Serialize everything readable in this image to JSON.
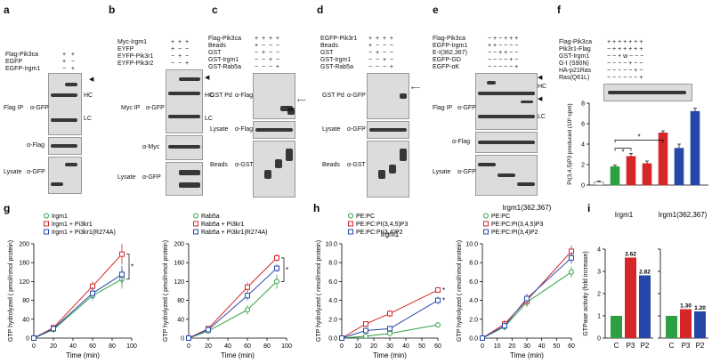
{
  "panels": {
    "a": {
      "letter": "a",
      "rows": [
        "Flag-Pik3ca",
        "EGFP",
        "EGFP-Irgm1"
      ],
      "labels": {
        "hc": "HC",
        "lc": "LC",
        "ip": "Flag IP",
        "agfp": "α-GFP",
        "aflag": "α-Flag",
        "lysate": "Lysate",
        "lgfp": "α-GFP"
      }
    },
    "b": {
      "letter": "b",
      "rows": [
        "Myc-Irgm1",
        "EYFP",
        "EYFP-Pik3r1",
        "EYFP-Pik3r2"
      ],
      "labels": {
        "hc": "HC",
        "lc": "LC",
        "ip": "Myc IP",
        "agfp": "α-GFP",
        "amyc": "α-Myc",
        "lysate": "Lysate",
        "lgfp": "α-GFP"
      }
    },
    "c": {
      "letter": "c",
      "rows": [
        "Flag-Pik3ca",
        "Beads",
        "GST",
        "GST-Irgm1",
        "GST-Rab5a"
      ],
      "labels": {
        "pd": "GST Pd",
        "aflag": "α-Flag",
        "lysate": "Lysate",
        "lflag": "α-Flag",
        "beads": "Beads",
        "agst": "α-GST"
      }
    },
    "d": {
      "letter": "d",
      "rows": [
        "EGFP-Pik3r1",
        "Beads",
        "GST",
        "GST-Irgm1",
        "GST-Rab5a"
      ],
      "labels": {
        "pd": "GST Pd",
        "agfp": "α-GFP",
        "lysate": "Lysate",
        "lgfp": "α-GFP",
        "beads": "Beads",
        "agst": "α-GST"
      }
    },
    "e": {
      "letter": "e",
      "rows": [
        "Flag-Pik3ca",
        "EGFP-Irgm1",
        "E-I(362,367)",
        "EGFP-GD",
        "EGFP-αK"
      ],
      "labels": {
        "hc": "HC",
        "lc": "LC",
        "ip": "Flag IP",
        "agfp": "α-GFP",
        "aflag": "α-Flag",
        "lysate": "Lysate",
        "lgfp": "α-GFP"
      }
    },
    "f": {
      "letter": "f",
      "rows": [
        "Flag-Pik3ca",
        "Pik3r1-Flag",
        "GST-Irgm1",
        "G-I (S90N)",
        "HA-p21Ras",
        "Ras(Q61L)"
      ],
      "w": "w"
    }
  },
  "chart_data": [
    {
      "id": "f",
      "type": "bar",
      "ylabel": "PI(3,4,5)P3 produced (10³ cpm)",
      "ylim": [
        0,
        8
      ],
      "yticks": [
        "0",
        "2",
        "4",
        "6",
        "8"
      ],
      "values": [
        0.3,
        1.8,
        2.8,
        2.1,
        5.1,
        3.6,
        7.2
      ],
      "errors": [
        0.1,
        0.15,
        0.3,
        0.25,
        0.2,
        0.4,
        0.3
      ],
      "colors": [
        "#ffffff",
        "#2ea043",
        "#d62728",
        "#d62728",
        "#d62728",
        "#2747a8",
        "#2747a8"
      ],
      "stars": [
        "*",
        "*"
      ]
    },
    {
      "id": "g1",
      "type": "line",
      "letter": "g",
      "xlabel": "Time (min)",
      "ylabel": "GTP hydrolyzed ( pmol/nmol protein)",
      "xlim": [
        0,
        100
      ],
      "ylim": [
        0,
        200
      ],
      "xticks": [
        "0",
        "20",
        "40",
        "60",
        "80",
        "100"
      ],
      "yticks": [
        "0",
        "40",
        "80",
        "120",
        "160",
        "200"
      ],
      "star": "*",
      "series": [
        {
          "name": "Irgm1",
          "color": "#2ea043",
          "marker": "circle",
          "x": [
            0,
            20,
            60,
            90
          ],
          "y": [
            0,
            18,
            90,
            125
          ],
          "err": [
            0,
            6,
            10,
            20
          ]
        },
        {
          "name": "Irgm1 + Pi3kr1",
          "color": "#d62728",
          "marker": "square",
          "x": [
            0,
            20,
            60,
            90
          ],
          "y": [
            0,
            22,
            110,
            178
          ],
          "err": [
            0,
            6,
            10,
            22
          ]
        },
        {
          "name": "Irgm1 + Pi3kr1(R274A)",
          "color": "#2747a8",
          "marker": "square",
          "x": [
            0,
            20,
            60,
            90
          ],
          "y": [
            0,
            20,
            95,
            135
          ],
          "err": [
            0,
            6,
            12,
            18
          ]
        }
      ]
    },
    {
      "id": "g2",
      "type": "line",
      "xlabel": "Time (min)",
      "ylabel": "GTP hydrolyzed ( pmol/nmol protein)",
      "xlim": [
        0,
        100
      ],
      "ylim": [
        0,
        200
      ],
      "xticks": [
        "0",
        "20",
        "40",
        "60",
        "80",
        "100"
      ],
      "yticks": [
        "0",
        "40",
        "80",
        "120",
        "160",
        "200"
      ],
      "star": "*",
      "series": [
        {
          "name": "Rab5a",
          "color": "#2ea043",
          "marker": "circle",
          "x": [
            0,
            20,
            60,
            90
          ],
          "y": [
            0,
            15,
            60,
            120
          ],
          "err": [
            0,
            5,
            10,
            15
          ]
        },
        {
          "name": "Rab5a + Pi3kr1",
          "color": "#d62728",
          "marker": "square",
          "x": [
            0,
            20,
            60,
            90
          ],
          "y": [
            0,
            20,
            108,
            170
          ],
          "err": [
            0,
            5,
            10,
            8
          ]
        },
        {
          "name": "Rab5a + Pi3kr1(R274A)",
          "color": "#2747a8",
          "marker": "square",
          "x": [
            0,
            20,
            60,
            90
          ],
          "y": [
            0,
            18,
            90,
            148
          ],
          "err": [
            0,
            5,
            10,
            8
          ]
        }
      ]
    },
    {
      "id": "h1",
      "type": "line",
      "letter": "h",
      "title": "Irgm1",
      "xlabel": "Time (min)",
      "ylabel": "GTP hydrolyzed ( nmol/nmol protein)",
      "xlim": [
        0,
        60
      ],
      "ylim": [
        0,
        10
      ],
      "xticks": [
        "0",
        "10",
        "20",
        "30",
        "40",
        "50",
        "60"
      ],
      "yticks": [
        "0.0",
        "2.0",
        "4.0",
        "6.0",
        "8.0",
        "10.0"
      ],
      "stars": [
        "*",
        "*"
      ],
      "series": [
        {
          "name": "PE:PC",
          "color": "#2ea043",
          "marker": "circle",
          "x": [
            0,
            15,
            30,
            60
          ],
          "y": [
            0,
            0.2,
            0.5,
            1.4
          ],
          "err": [
            0,
            0.1,
            0.2,
            0.2
          ]
        },
        {
          "name": "PE:PC:PI(3,4,5)P3",
          "color": "#d62728",
          "marker": "square",
          "x": [
            0,
            15,
            30,
            60
          ],
          "y": [
            0,
            1.5,
            2.6,
            5.1
          ],
          "err": [
            0,
            0.3,
            0.4,
            0.3
          ]
        },
        {
          "name": "PE:PC:PI(3,4)P2",
          "color": "#2747a8",
          "marker": "square",
          "x": [
            0,
            15,
            30,
            60
          ],
          "y": [
            0,
            0.8,
            1.0,
            4.0
          ],
          "err": [
            0,
            0.3,
            0.3,
            0.4
          ]
        }
      ]
    },
    {
      "id": "h2",
      "type": "line",
      "title": "Irgm1(362,367)",
      "xlabel": "Time (min)",
      "ylabel": "GTP hydrolyzed ( nmol/nmol protein)",
      "xlim": [
        0,
        60
      ],
      "ylim": [
        0,
        10
      ],
      "xticks": [
        "0",
        "10",
        "20",
        "30",
        "40",
        "50",
        "60"
      ],
      "yticks": [
        "0.0",
        "2.0",
        "4.0",
        "6.0",
        "8.0",
        "10.0"
      ],
      "series": [
        {
          "name": "PE:PC",
          "color": "#2ea043",
          "marker": "circle",
          "x": [
            0,
            15,
            30,
            60
          ],
          "y": [
            0,
            1.2,
            3.8,
            7.0
          ],
          "err": [
            0,
            0.4,
            0.5,
            0.6
          ]
        },
        {
          "name": "PE:PC:PI(3,4,5)P3",
          "color": "#d62728",
          "marker": "square",
          "x": [
            0,
            15,
            30,
            60
          ],
          "y": [
            0,
            1.5,
            4.0,
            9.2
          ],
          "err": [
            0,
            0.4,
            0.5,
            0.6
          ]
        },
        {
          "name": "PE:PC:PI(3,4)P2",
          "color": "#2747a8",
          "marker": "square",
          "x": [
            0,
            15,
            30,
            60
          ],
          "y": [
            0,
            1.3,
            4.2,
            8.5
          ],
          "err": [
            0,
            0.4,
            0.5,
            0.6
          ]
        }
      ]
    },
    {
      "id": "i",
      "type": "bar",
      "letter": "i",
      "ylabel": "GTPase activity (fold increase)",
      "ylim": [
        0,
        4
      ],
      "yticks": [
        "0",
        "1",
        "2",
        "3",
        "4"
      ],
      "groups": [
        {
          "title": "Irgm1",
          "categories": [
            "C",
            "P3",
            "P2"
          ],
          "values": [
            1,
            3.62,
            2.82
          ],
          "labels": [
            "",
            "3.62",
            "2.82"
          ]
        },
        {
          "title": "Irgm1(362,367)",
          "categories": [
            "C",
            "P3",
            "P2"
          ],
          "values": [
            1,
            1.3,
            1.2
          ],
          "labels": [
            "",
            "1.30",
            "1.20"
          ]
        }
      ],
      "colors": [
        "#2ea043",
        "#d62728",
        "#2747a8"
      ]
    }
  ]
}
